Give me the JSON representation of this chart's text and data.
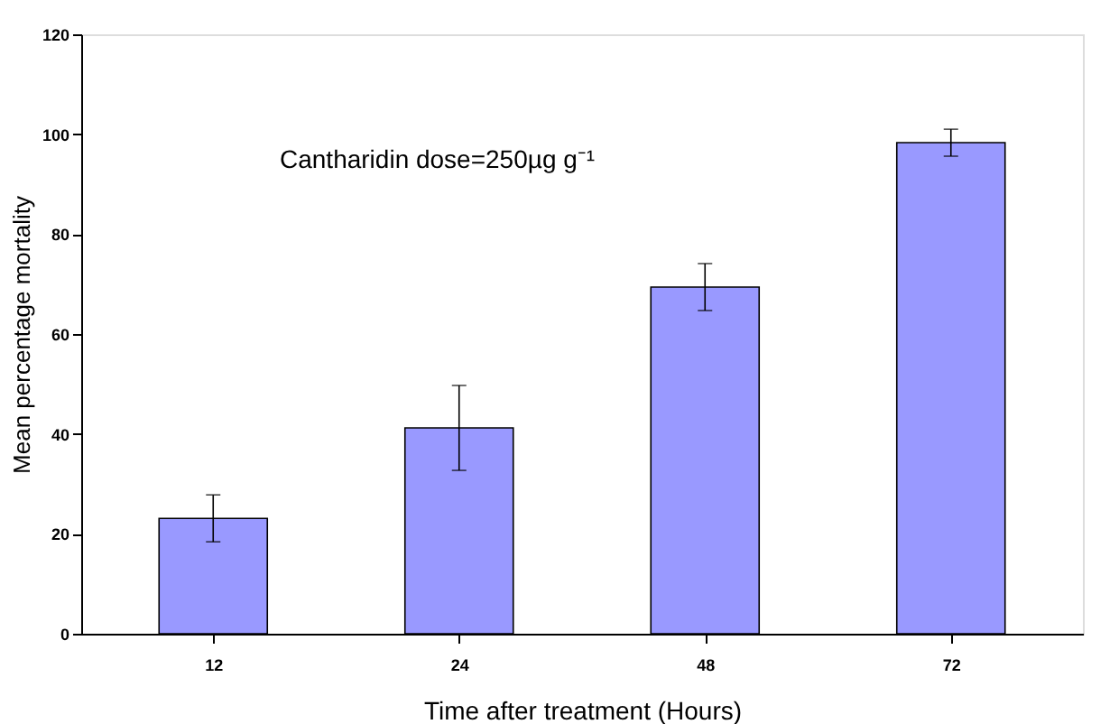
{
  "chart_data": {
    "type": "bar",
    "categories": [
      "12",
      "24",
      "48",
      "72"
    ],
    "values": [
      23.1,
      41.2,
      69.4,
      98.3
    ],
    "errors": [
      4.7,
      8.5,
      4.7,
      2.7
    ],
    "color": "#9999ff",
    "xlabel": "Time after treatment (Hours)",
    "ylabel": "Mean percentage mortality",
    "ylim": [
      0,
      120
    ],
    "yticks": [
      0,
      20,
      40,
      60,
      80,
      100,
      120
    ],
    "grid": false,
    "annotations": [
      "Cantharidin dose=250µg g⁻¹"
    ]
  }
}
